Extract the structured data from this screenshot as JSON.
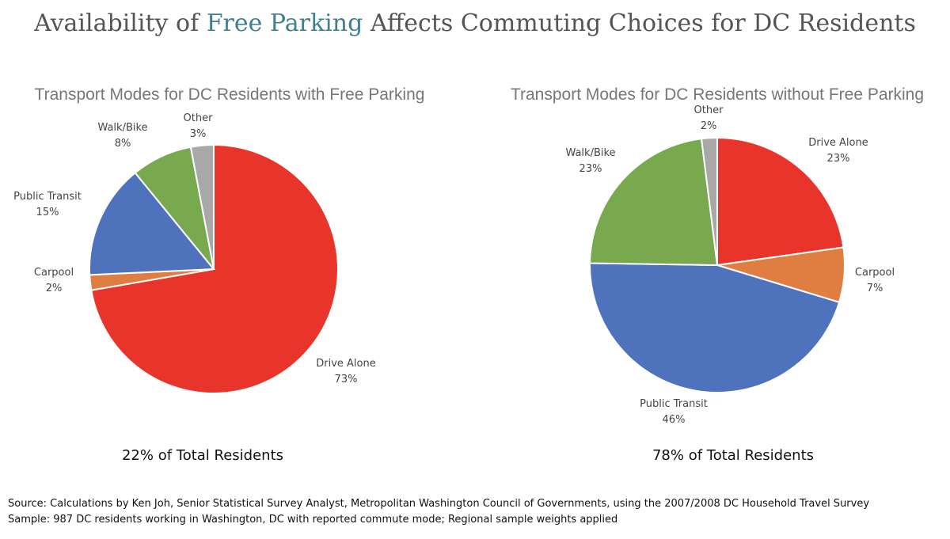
{
  "title": {
    "prefix": "Availability of ",
    "highlight": "Free Parking",
    "suffix": " Affects Commuting Choices for DC Residents"
  },
  "chart_data": [
    {
      "type": "pie",
      "title": "Transport Modes for DC Residents with Free Parking",
      "caption": "22% of Total Residents",
      "slices": [
        {
          "name": "Drive Alone",
          "value": 73,
          "label": "73%",
          "color": "#e8342a"
        },
        {
          "name": "Carpool",
          "value": 2,
          "label": "2%",
          "color": "#e07e42"
        },
        {
          "name": "Public Transit",
          "value": 15,
          "label": "15%",
          "color": "#4f72bd"
        },
        {
          "name": "Walk/Bike",
          "value": 8,
          "label": "8%",
          "color": "#78a94f"
        },
        {
          "name": "Other",
          "value": 3,
          "label": "3%",
          "color": "#a8a8a8"
        }
      ]
    },
    {
      "type": "pie",
      "title": "Transport Modes for DC Residents without Free Parking",
      "caption": "78% of Total Residents",
      "slices": [
        {
          "name": "Drive Alone",
          "value": 23,
          "label": "23%",
          "color": "#e8342a"
        },
        {
          "name": "Carpool",
          "value": 7,
          "label": "7%",
          "color": "#e07e42"
        },
        {
          "name": "Public Transit",
          "value": 46,
          "label": "46%",
          "color": "#4f72bd"
        },
        {
          "name": "Walk/Bike",
          "value": 23,
          "label": "23%",
          "color": "#78a94f"
        },
        {
          "name": "Other",
          "value": 2,
          "label": "2%",
          "color": "#a8a8a8"
        }
      ]
    }
  ],
  "source": {
    "line1": "Source: Calculations by Ken Joh, Senior Statistical Survey Analyst, Metropolitan Washington Council of Governments, using the 2007/2008 DC Household Travel Survey",
    "line2": "Sample: 987 DC residents working in Washington, DC with reported commute mode; Regional sample weights applied"
  }
}
